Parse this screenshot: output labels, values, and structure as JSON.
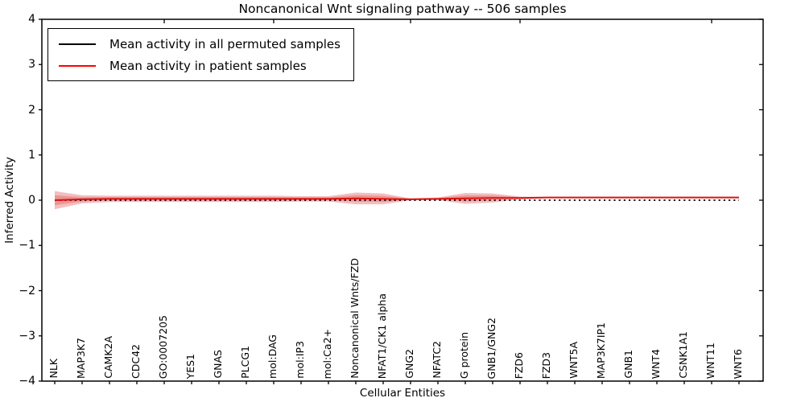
{
  "figure": {
    "title": "Noncanonical Wnt signaling pathway -- 506 samples",
    "xlabel": "Cellular Entities",
    "ylabel": "Inferred Activity"
  },
  "legend": {
    "position": "upper left",
    "items": [
      {
        "label": "Mean activity in all permuted samples",
        "color": "#000000",
        "style": "solid"
      },
      {
        "label": "Mean activity in patient samples",
        "color": "#ff0000",
        "style": "solid"
      }
    ]
  },
  "chart_data": {
    "type": "line",
    "title": "Noncanonical Wnt signaling pathway -- 506 samples",
    "xlabel": "Cellular Entities",
    "ylabel": "Inferred Activity",
    "ylim": [
      -4,
      4
    ],
    "ytick_values": [
      4,
      3,
      2,
      1,
      0,
      -1,
      -2,
      -3,
      -4
    ],
    "ytick_labels": [
      "4",
      "3",
      "2",
      "1",
      "0",
      "−1",
      "−2",
      "−3",
      "−4"
    ],
    "grid": false,
    "legend_position": "upper left",
    "categories": [
      "NLK",
      "MAP3K7",
      "CAMK2A",
      "CDC42",
      "GO:0007205",
      "YES1",
      "GNAS",
      "PLCG1",
      "mol:DAG",
      "mol:IP3",
      "mol:Ca2+",
      "Noncanonical Wnts/FZD",
      "NFAT1/CK1 alpha",
      "GNG2",
      "NFATC2",
      "G protein",
      "GNB1/GNG2",
      "FZD6",
      "FZD3",
      "WNT5A",
      "MAP3K7IP1",
      "GNB1",
      "WNT4",
      "CSNK1A1",
      "WNT11",
      "WNT6"
    ],
    "series": [
      {
        "name": "Mean activity in all permuted samples",
        "color": "#000000",
        "line_style": "dotted",
        "values": [
          0.0,
          0.0,
          0.0,
          0.0,
          0.0,
          0.0,
          0.0,
          0.0,
          0.0,
          0.0,
          0.0,
          0.0,
          0.0,
          0.0,
          0.0,
          0.0,
          0.0,
          0.0,
          0.0,
          0.0,
          0.0,
          0.0,
          0.0,
          0.0,
          0.0,
          0.0
        ]
      },
      {
        "name": "Mean activity in patient samples",
        "color": "#dd1111",
        "line_style": "solid",
        "values": [
          0.0,
          0.02,
          0.03,
          0.03,
          0.03,
          0.03,
          0.03,
          0.03,
          0.03,
          0.03,
          0.03,
          0.04,
          0.03,
          0.02,
          0.03,
          0.04,
          0.05,
          0.05,
          0.06,
          0.06,
          0.06,
          0.06,
          0.06,
          0.06,
          0.06,
          0.06
        ]
      }
    ],
    "band": {
      "name": "patient sample activity spread",
      "color": "#e05555",
      "centered_on_series": "Mean activity in patient samples",
      "halfwidths": [
        0.2,
        0.09,
        0.07,
        0.07,
        0.07,
        0.07,
        0.07,
        0.07,
        0.07,
        0.06,
        0.06,
        0.13,
        0.12,
        0.02,
        0.03,
        0.12,
        0.1,
        0.03,
        0.01,
        0.0,
        0.0,
        0.0,
        0.0,
        0.0,
        0.0,
        0.0
      ]
    }
  }
}
